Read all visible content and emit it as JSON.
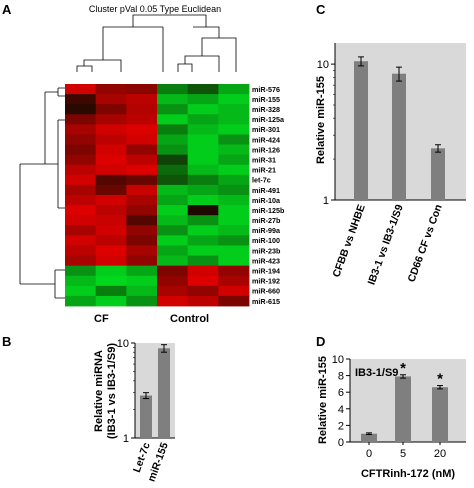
{
  "panels": {
    "a": "A",
    "b": "B",
    "c": "C",
    "d": "D"
  },
  "heatmap": {
    "title": "Cluster  pVal 0.05 Type Euclidean",
    "group_labels": [
      "CF",
      "Control"
    ],
    "rows": [
      "miR-576",
      "miR-155",
      "miR-328",
      "miR-125a",
      "miR-301",
      "miR-424",
      "miR-126",
      "miR-31",
      "miR-21",
      "let-7c",
      "miR-491",
      "miR-10a",
      "miR-125b",
      "miR-27b",
      "miR-99a",
      "miR-100",
      "miR-23b",
      "miR-423",
      "miR-194",
      "miR-192",
      "miR-660",
      "miR-615"
    ]
  },
  "chart_data": [
    {
      "panel": "A",
      "type": "heatmap",
      "columns_cf": 3,
      "columns_control": 3,
      "colors": {
        "high": "#e00000",
        "low": "#40e020",
        "mid": "#101000"
      },
      "values": [
        [
          0.9,
          0.6,
          0.55,
          -0.5,
          -0.3,
          -0.7
        ],
        [
          0.2,
          0.7,
          0.8,
          -0.8,
          -0.7,
          -0.9
        ],
        [
          0.1,
          0.5,
          0.75,
          -0.6,
          -0.9,
          -0.8
        ],
        [
          0.5,
          0.7,
          0.8,
          -0.9,
          -0.7,
          -0.8
        ],
        [
          0.7,
          0.9,
          0.95,
          -0.5,
          -0.8,
          -0.9
        ],
        [
          0.6,
          0.8,
          0.9,
          -0.7,
          -0.9,
          -0.6
        ],
        [
          0.5,
          0.9,
          0.6,
          -0.6,
          -0.9,
          -0.8
        ],
        [
          0.6,
          0.95,
          0.8,
          -0.2,
          -0.9,
          -0.7
        ],
        [
          0.8,
          0.9,
          0.95,
          -0.4,
          -0.8,
          -0.9
        ],
        [
          0.9,
          0.3,
          0.4,
          -0.3,
          -0.5,
          -0.7
        ],
        [
          0.7,
          0.4,
          0.85,
          -0.8,
          -0.7,
          -0.6
        ],
        [
          0.8,
          0.9,
          0.7,
          -0.7,
          -0.9,
          -0.8
        ],
        [
          0.95,
          0.8,
          0.6,
          -0.9,
          0.05,
          -0.9
        ],
        [
          0.9,
          0.85,
          0.3,
          -0.8,
          -0.6,
          -0.9
        ],
        [
          0.7,
          0.9,
          0.6,
          -0.6,
          -0.9,
          -0.8
        ],
        [
          0.9,
          0.8,
          0.5,
          -0.9,
          -0.7,
          -0.6
        ],
        [
          0.8,
          0.95,
          0.7,
          -0.7,
          -0.9,
          -0.9
        ],
        [
          0.7,
          0.9,
          0.6,
          -0.8,
          -0.6,
          -0.9
        ],
        [
          -0.6,
          -0.9,
          -0.7,
          0.5,
          0.9,
          0.6
        ],
        [
          -0.8,
          -0.95,
          -0.9,
          0.6,
          0.95,
          0.7
        ],
        [
          -0.9,
          -0.5,
          -0.8,
          0.7,
          0.6,
          0.9
        ],
        [
          -0.7,
          -0.9,
          -0.6,
          0.9,
          0.8,
          0.5
        ]
      ]
    },
    {
      "panel": "B",
      "type": "bar",
      "categories": [
        "Let-7c",
        "miR-155"
      ],
      "values": [
        2.8,
        8.8
      ],
      "errors": [
        0.2,
        0.8
      ],
      "ylabel": "Relative miRNA\n(IB3-1 vs IB3-1/S9)",
      "yscale": "log",
      "ylim": [
        1,
        10
      ],
      "yticks": [
        "1",
        "10"
      ]
    },
    {
      "panel": "C",
      "type": "bar",
      "categories": [
        "CFBB vs NHBE",
        "IB3-1 vs IB3-1/S9",
        "CD66 CF vs Con"
      ],
      "values": [
        10.5,
        8.5,
        2.4
      ],
      "errors": [
        0.8,
        1.0,
        0.15
      ],
      "ylabel": "Relative miR-155",
      "yscale": "log",
      "ylim": [
        1,
        15
      ],
      "yticks": [
        "1",
        "10"
      ]
    },
    {
      "panel": "D",
      "type": "bar",
      "annotation": "IB3-1/S9",
      "categories": [
        "0",
        "5",
        "20"
      ],
      "values": [
        1.0,
        7.9,
        6.6
      ],
      "errors": [
        0.1,
        0.2,
        0.2
      ],
      "significance": [
        "",
        "*",
        "*"
      ],
      "xlabel": "CFTRinh-172 (nM)",
      "ylabel": "Relative miR-155",
      "ylim": [
        0,
        10
      ],
      "yticks": [
        "0",
        "2",
        "4",
        "6",
        "8",
        "10"
      ]
    }
  ]
}
